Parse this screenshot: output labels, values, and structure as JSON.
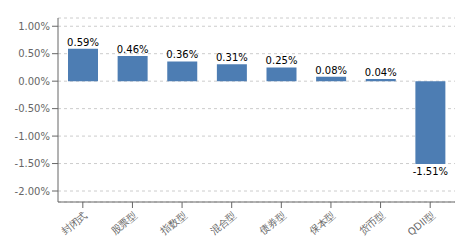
{
  "chart_data": {
    "type": "bar",
    "categories": [
      "封闭式",
      "股票型",
      "指数型",
      "混合型",
      "债券型",
      "保本型",
      "货币型",
      "QDII型"
    ],
    "values": [
      0.0059,
      0.0046,
      0.0036,
      0.0031,
      0.0025,
      0.0008,
      0.0004,
      -0.0151
    ],
    "value_labels": [
      "0.59%",
      "0.46%",
      "0.36%",
      "0.31%",
      "0.25%",
      "0.08%",
      "0.04%",
      "-1.51%"
    ],
    "color": "#4d7db3",
    "ylim": [
      -0.022,
      0.0115
    ],
    "yticks": [
      {
        "value": -0.02,
        "label": "-2.00%"
      },
      {
        "value": -0.015,
        "label": "-1.50%"
      },
      {
        "value": -0.01,
        "label": "-1.00%"
      },
      {
        "value": -0.005,
        "label": "-0.50%"
      },
      {
        "value": 0.0,
        "label": "0.00%"
      },
      {
        "value": 0.005,
        "label": "0.50%"
      },
      {
        "value": 0.01,
        "label": "1.00%"
      }
    ],
    "grid": true,
    "data_labels": true
  }
}
